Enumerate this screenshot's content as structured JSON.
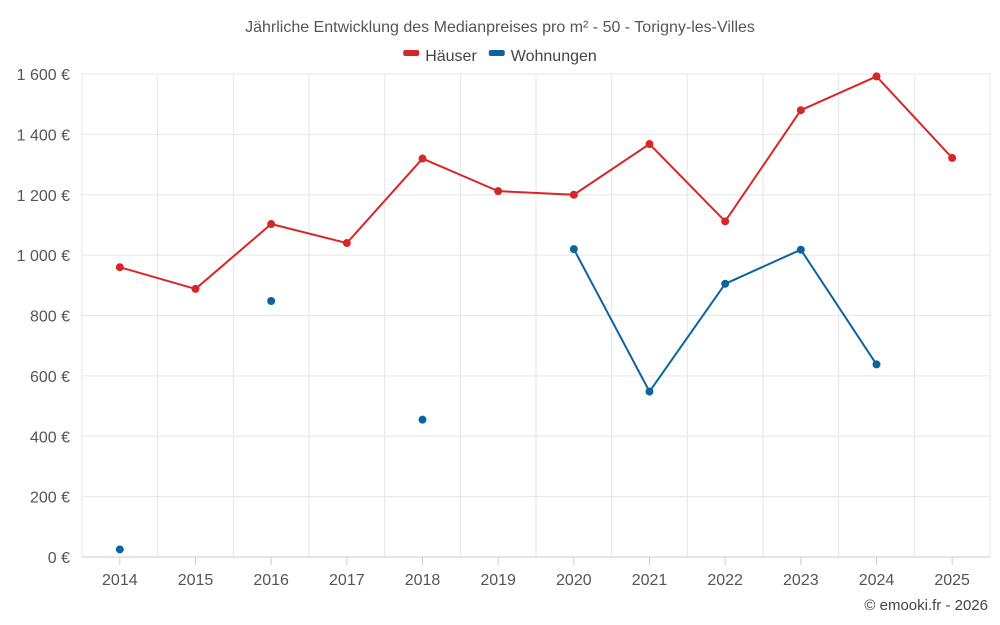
{
  "chart_data": {
    "type": "line",
    "title": "Jährliche Entwicklung des Medianpreises pro m² - 50 - Torigny-les-Villes",
    "categories": [
      "2014",
      "2015",
      "2016",
      "2017",
      "2018",
      "2019",
      "2020",
      "2021",
      "2022",
      "2023",
      "2024",
      "2025"
    ],
    "series": [
      {
        "name": "Häuser",
        "color": "#d62728",
        "values": [
          960,
          888,
          1103,
          1040,
          1320,
          1212,
          1200,
          1368,
          1112,
          1480,
          1592,
          1322
        ]
      },
      {
        "name": "Wohnungen",
        "color": "#0b64a0",
        "values": [
          25,
          null,
          848,
          null,
          455,
          null,
          1020,
          548,
          905,
          1018,
          638,
          null
        ]
      }
    ],
    "yticks": [
      "0 €",
      "200 €",
      "400 €",
      "600 €",
      "800 €",
      "1 000 €",
      "1 200 €",
      "1 400 €",
      "1 600 €"
    ],
    "ytick_values": [
      0,
      200,
      400,
      600,
      800,
      1000,
      1200,
      1400,
      1600
    ],
    "ylim": [
      0,
      1600
    ],
    "xlabel": "",
    "ylabel": "",
    "legend_position": "top-center",
    "grid": true
  },
  "credit": "© emooki.fr - 2026"
}
